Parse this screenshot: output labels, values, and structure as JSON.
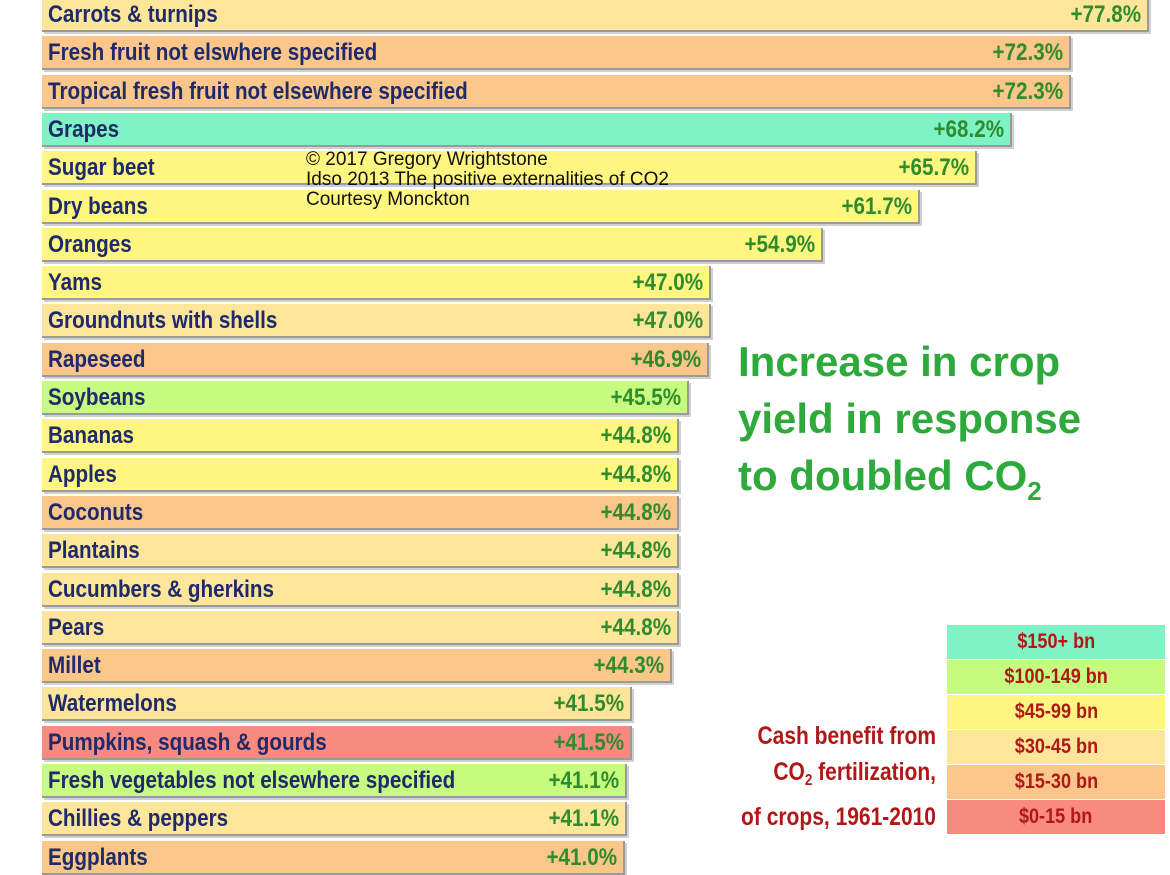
{
  "chart_data": {
    "type": "bar",
    "orientation": "horizontal",
    "title_line1": "Increase in crop",
    "title_line2": "yield in response",
    "title_line3_prefix": "to doubled CO",
    "title_line3_sub": "2",
    "credits": [
      "© 2017 Gregory Wrightstone",
      "Idso 2013 The positive externalities of CO2",
      "Courtesy Monckton"
    ],
    "bars": [
      {
        "category": "Carrots & turnips",
        "value": 77.8,
        "label": "+77.8%",
        "color": "#fde599"
      },
      {
        "category": "Fresh fruit not elswhere specified",
        "value": 72.3,
        "label": "+72.3%",
        "color": "#fbc68a"
      },
      {
        "category": "Tropical fresh fruit not elsewhere specified",
        "value": 72.3,
        "label": "+72.3%",
        "color": "#fbc68a"
      },
      {
        "category": "Grapes",
        "value": 68.2,
        "label": "+68.2%",
        "color": "#7ff3c4"
      },
      {
        "category": "Sugar beet",
        "value": 65.7,
        "label": "+65.7%",
        "color": "#fef680"
      },
      {
        "category": "Dry beans",
        "value": 61.7,
        "label": "+61.7%",
        "color": "#fef680"
      },
      {
        "category": "Oranges",
        "value": 54.9,
        "label": "+54.9%",
        "color": "#fef680"
      },
      {
        "category": "Yams",
        "value": 47.0,
        "label": "+47.0%",
        "color": "#fef680"
      },
      {
        "category": "Groundnuts with shells",
        "value": 47.0,
        "label": "+47.0%",
        "color": "#fde599"
      },
      {
        "category": "Rapeseed",
        "value": 46.9,
        "label": "+46.9%",
        "color": "#fbc68a"
      },
      {
        "category": "Soybeans",
        "value": 45.5,
        "label": "+45.5%",
        "color": "#c6fb7f"
      },
      {
        "category": "Bananas",
        "value": 44.8,
        "label": "+44.8%",
        "color": "#fef680"
      },
      {
        "category": "Apples",
        "value": 44.8,
        "label": "+44.8%",
        "color": "#fef680"
      },
      {
        "category": "Coconuts",
        "value": 44.8,
        "label": "+44.8%",
        "color": "#fbc68a"
      },
      {
        "category": "Plantains",
        "value": 44.8,
        "label": "+44.8%",
        "color": "#fde599"
      },
      {
        "category": "Cucumbers & gherkins",
        "value": 44.8,
        "label": "+44.8%",
        "color": "#fde599"
      },
      {
        "category": "Pears",
        "value": 44.8,
        "label": "+44.8%",
        "color": "#fde599"
      },
      {
        "category": "Millet",
        "value": 44.3,
        "label": "+44.3%",
        "color": "#fbc68a"
      },
      {
        "category": "Watermelons",
        "value": 41.5,
        "label": "+41.5%",
        "color": "#fde599"
      },
      {
        "category": "Pumpkins, squash & gourds",
        "value": 41.5,
        "label": "+41.5%",
        "color": "#f88a80"
      },
      {
        "category": "Fresh vegetables not elsewhere specified",
        "value": 41.1,
        "label": "+41.1%",
        "color": "#c6fb7f"
      },
      {
        "category": "Chillies & peppers",
        "value": 41.1,
        "label": "+41.1%",
        "color": "#fde599"
      },
      {
        "category": "Eggplants",
        "value": 41.0,
        "label": "+41.0%",
        "color": "#fbc68a"
      }
    ],
    "legend": {
      "caption_line1": "Cash benefit from",
      "caption_line2_prefix": "CO",
      "caption_line2_sub": "2",
      "caption_line2_suffix": " fertilization,",
      "caption_line3": "of crops, 1961-2010",
      "items": [
        {
          "label": "$150+ bn",
          "color": "#7ff3c4"
        },
        {
          "label": "$100-149 bn",
          "color": "#c6fb7f"
        },
        {
          "label": "$45-99 bn",
          "color": "#fef680"
        },
        {
          "label": "$30-45 bn",
          "color": "#fde599"
        },
        {
          "label": "$15-30 bn",
          "color": "#fbc68a"
        },
        {
          "label": "$0-15 bn",
          "color": "#f88a80"
        }
      ]
    }
  }
}
